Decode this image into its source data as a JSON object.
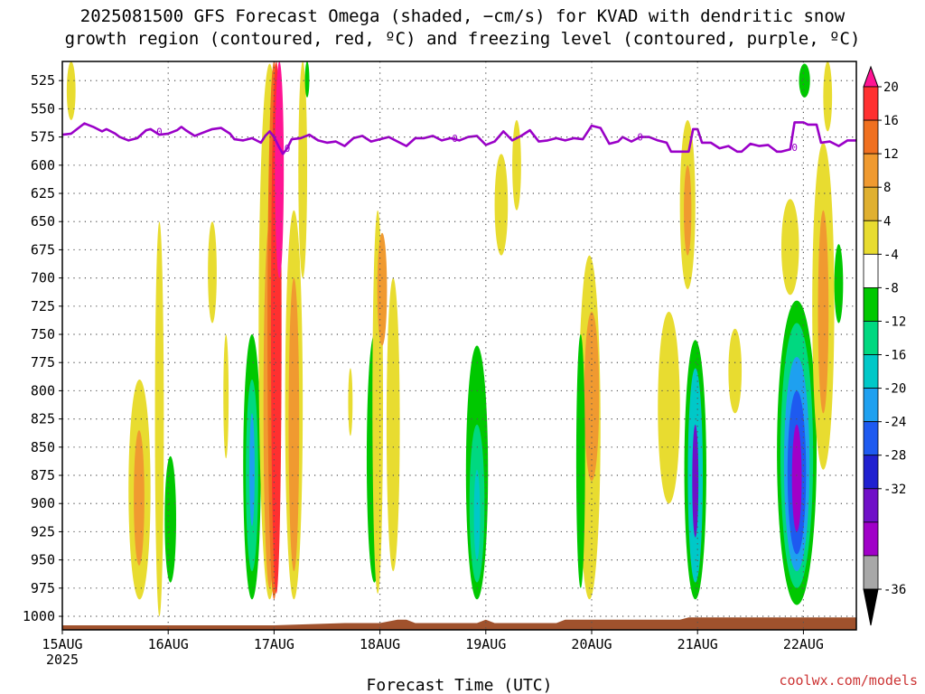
{
  "title": {
    "line1": "2025081500 GFS Forecast Omega (shaded, −cm/s) for KVAD with dendritic snow",
    "line2": "growth region (contoured, red, ºC) and freezing level (contoured, purple, ºC)"
  },
  "credit": "coolwx.com/models",
  "chart_data": {
    "type": "heatmap",
    "xlabel": "Forecast Time (UTC)",
    "xlim_hours": [
      0,
      180
    ],
    "x_ticks": [
      {
        "label": "15AUG",
        "sub": "2025",
        "hour": 0
      },
      {
        "label": "16AUG",
        "hour": 24
      },
      {
        "label": "17AUG",
        "hour": 48
      },
      {
        "label": "18AUG",
        "hour": 72
      },
      {
        "label": "19AUG",
        "hour": 96
      },
      {
        "label": "20AUG",
        "hour": 120
      },
      {
        "label": "21AUG",
        "hour": 144
      },
      {
        "label": "22AUG",
        "hour": 168
      }
    ],
    "y_unit": "hPa",
    "ylim": [
      1012,
      508
    ],
    "y_ticks": [
      525,
      550,
      575,
      600,
      625,
      650,
      675,
      700,
      725,
      750,
      775,
      800,
      825,
      850,
      875,
      900,
      925,
      950,
      975,
      1000
    ],
    "grid": true,
    "colorbar": {
      "labels": [
        20,
        16,
        12,
        8,
        4,
        -4,
        -8,
        -12,
        -16,
        -20,
        -24,
        -28,
        -32,
        -36
      ],
      "colors": [
        "#ff1493",
        "#ff3030",
        "#f07020",
        "#f09a30",
        "#e0b030",
        "#e8dc30",
        "#ffffff",
        "#00c800",
        "#00d880",
        "#00c8c8",
        "#1ea0f0",
        "#1e5af0",
        "#2020d0",
        "#7010c8",
        "#a000c8",
        "#a8a8a8",
        "#000000"
      ]
    },
    "freezing_level": {
      "color": "#9a00c8",
      "label": "0",
      "points": [
        [
          0,
          573
        ],
        [
          2,
          572
        ],
        [
          4,
          566
        ],
        [
          5,
          563
        ],
        [
          7,
          566
        ],
        [
          9,
          570
        ],
        [
          10,
          568
        ],
        [
          12,
          572
        ],
        [
          13,
          575
        ],
        [
          15,
          578
        ],
        [
          17,
          576
        ],
        [
          19,
          569
        ],
        [
          20,
          568
        ],
        [
          22,
          573
        ],
        [
          24,
          572
        ],
        [
          26,
          569
        ],
        [
          27,
          566
        ],
        [
          28,
          569
        ],
        [
          30,
          574
        ],
        [
          32,
          571
        ],
        [
          34,
          568
        ],
        [
          36,
          567
        ],
        [
          38,
          572
        ],
        [
          39,
          577
        ],
        [
          41,
          578
        ],
        [
          43,
          576
        ],
        [
          45,
          580
        ],
        [
          46,
          574
        ],
        [
          47,
          570
        ],
        [
          48,
          575
        ],
        [
          49,
          583
        ],
        [
          50,
          590
        ],
        [
          51,
          585
        ],
        [
          52,
          577
        ],
        [
          54,
          576
        ],
        [
          56,
          573
        ],
        [
          58,
          578
        ],
        [
          60,
          580
        ],
        [
          62,
          579
        ],
        [
          64,
          583
        ],
        [
          66,
          576
        ],
        [
          68,
          574
        ],
        [
          70,
          579
        ],
        [
          72,
          577
        ],
        [
          74,
          575
        ],
        [
          76,
          579
        ],
        [
          78,
          583
        ],
        [
          80,
          576
        ],
        [
          82,
          576
        ],
        [
          84,
          574
        ],
        [
          86,
          578
        ],
        [
          88,
          576
        ],
        [
          90,
          578
        ],
        [
          92,
          575
        ],
        [
          94,
          574
        ],
        [
          96,
          582
        ],
        [
          98,
          579
        ],
        [
          100,
          570
        ],
        [
          102,
          578
        ],
        [
          104,
          574
        ],
        [
          106,
          569
        ],
        [
          108,
          579
        ],
        [
          110,
          578
        ],
        [
          112,
          576
        ],
        [
          114,
          578
        ],
        [
          116,
          576
        ],
        [
          118,
          577
        ],
        [
          120,
          565
        ],
        [
          122,
          567
        ],
        [
          124,
          581
        ],
        [
          126,
          579
        ],
        [
          127,
          575
        ],
        [
          129,
          579
        ],
        [
          131,
          575
        ],
        [
          133,
          575
        ],
        [
          135,
          578
        ],
        [
          137,
          580
        ],
        [
          138,
          588
        ],
        [
          141,
          588
        ],
        [
          142,
          588
        ],
        [
          143,
          568
        ],
        [
          144,
          568
        ],
        [
          145,
          580
        ],
        [
          147,
          580
        ],
        [
          149,
          585
        ],
        [
          151,
          583
        ],
        [
          153,
          588
        ],
        [
          154,
          588
        ],
        [
          156,
          581
        ],
        [
          158,
          583
        ],
        [
          160,
          582
        ],
        [
          162,
          588
        ],
        [
          163,
          588
        ],
        [
          165,
          586
        ],
        [
          166,
          562
        ],
        [
          168,
          562
        ],
        [
          169,
          564
        ],
        [
          171,
          564
        ],
        [
          172,
          580
        ],
        [
          174,
          579
        ],
        [
          176,
          583
        ],
        [
          178,
          578
        ],
        [
          180,
          578
        ]
      ],
      "contour_labels": [
        [
          22,
          570
        ],
        [
          51,
          585
        ],
        [
          89,
          576
        ],
        [
          131,
          575
        ],
        [
          166,
          584
        ]
      ]
    },
    "shaded_regions": [
      {
        "x": [
          1.0,
          3.0
        ],
        "y": [
          508,
          560
        ],
        "value": 5,
        "color": "#e8dc30"
      },
      {
        "x": [
          15.0,
          20.0
        ],
        "y": [
          790,
          985
        ],
        "value": 6,
        "color": "#e8dc30"
      },
      {
        "x": [
          16.2,
          18.6
        ],
        "y": [
          835,
          955
        ],
        "value": 10,
        "color": "#f09a30"
      },
      {
        "x": [
          23.2,
          25.8
        ],
        "y": [
          858,
          970
        ],
        "value": -6,
        "color": "#00c800"
      },
      {
        "x": [
          21.0,
          23.0
        ],
        "y": [
          650,
          1000
        ],
        "value": 5,
        "color": "#e8dc30"
      },
      {
        "x": [
          33.0,
          35.0
        ],
        "y": [
          650,
          740
        ],
        "value": 5,
        "color": "#e8dc30"
      },
      {
        "x": [
          36.5,
          37.7
        ],
        "y": [
          750,
          860
        ],
        "value": 5,
        "color": "#e8dc30"
      },
      {
        "x": [
          41.0,
          45.0
        ],
        "y": [
          750,
          985
        ],
        "value": -7,
        "color": "#00c800"
      },
      {
        "x": [
          41.6,
          44.4
        ],
        "y": [
          790,
          960
        ],
        "value": -10,
        "color": "#00d880"
      },
      {
        "x": [
          42.4,
          43.6
        ],
        "y": [
          820,
          920
        ],
        "value": -14,
        "color": "#1ea0f0"
      },
      {
        "x": [
          44.5,
          49.5
        ],
        "y": [
          510,
          985
        ],
        "value": 6,
        "color": "#e8dc30"
      },
      {
        "x": [
          45.6,
          48.4
        ],
        "y": [
          650,
          975
        ],
        "value": 10,
        "color": "#f09a30"
      },
      {
        "x": [
          46.5,
          49.5
        ],
        "y": [
          508,
          985
        ],
        "value": 14,
        "color": "#f07020"
      },
      {
        "x": [
          47.3,
          49.7
        ],
        "y": [
          508,
          980
        ],
        "value": 18,
        "color": "#ff3030"
      },
      {
        "x": [
          48.2,
          50.2
        ],
        "y": [
          508,
          700
        ],
        "value": 22,
        "color": "#ff1493"
      },
      {
        "x": [
          50.5,
          54.5
        ],
        "y": [
          640,
          985
        ],
        "value": 6,
        "color": "#e8dc30"
      },
      {
        "x": [
          51.3,
          53.7
        ],
        "y": [
          700,
          960
        ],
        "value": 10,
        "color": "#f09a30"
      },
      {
        "x": [
          53.5,
          55.5
        ],
        "y": [
          508,
          700
        ],
        "value": 5,
        "color": "#e8dc30"
      },
      {
        "x": [
          55.0,
          56.0
        ],
        "y": [
          508,
          540
        ],
        "value": -6,
        "color": "#00c800"
      },
      {
        "x": [
          64.8,
          65.8
        ],
        "y": [
          780,
          840
        ],
        "value": 5,
        "color": "#e8dc30"
      },
      {
        "x": [
          69.0,
          72.5
        ],
        "y": [
          750,
          970
        ],
        "value": -6,
        "color": "#00c800"
      },
      {
        "x": [
          70.3,
          72.7
        ],
        "y": [
          640,
          980
        ],
        "value": 5,
        "color": "#e8dc30"
      },
      {
        "x": [
          71.4,
          73.6
        ],
        "y": [
          660,
          760
        ],
        "value": 9,
        "color": "#f09a30"
      },
      {
        "x": [
          73.5,
          76.5
        ],
        "y": [
          700,
          960
        ],
        "value": 5,
        "color": "#e8dc30"
      },
      {
        "x": [
          91.5,
          96.5
        ],
        "y": [
          760,
          985
        ],
        "value": -6,
        "color": "#00c800"
      },
      {
        "x": [
          92.3,
          95.7
        ],
        "y": [
          830,
          970
        ],
        "value": -10,
        "color": "#00d880"
      },
      {
        "x": [
          93.3,
          94.7
        ],
        "y": [
          870,
          950
        ],
        "value": -13,
        "color": "#00c8c8"
      },
      {
        "x": [
          98.0,
          101.0
        ],
        "y": [
          590,
          680
        ],
        "value": 5,
        "color": "#e8dc30"
      },
      {
        "x": [
          102.0,
          104.0
        ],
        "y": [
          560,
          640
        ],
        "value": 5,
        "color": "#e8dc30"
      },
      {
        "x": [
          117.0,
          122.0
        ],
        "y": [
          680,
          985
        ],
        "value": 5,
        "color": "#e8dc30"
      },
      {
        "x": [
          118.3,
          121.7
        ],
        "y": [
          730,
          880
        ],
        "value": 9,
        "color": "#f09a30"
      },
      {
        "x": [
          116.5,
          118.5
        ],
        "y": [
          750,
          975
        ],
        "value": -6,
        "color": "#00c800"
      },
      {
        "x": [
          135.0,
          140.0
        ],
        "y": [
          730,
          900
        ],
        "value": 5,
        "color": "#e8dc30"
      },
      {
        "x": [
          140.0,
          143.5
        ],
        "y": [
          560,
          710
        ],
        "value": 5,
        "color": "#e8dc30"
      },
      {
        "x": [
          140.9,
          142.6
        ],
        "y": [
          600,
          680
        ],
        "value": 10,
        "color": "#f09a30"
      },
      {
        "x": [
          141.0,
          146.0
        ],
        "y": [
          755,
          985
        ],
        "value": -7,
        "color": "#00c800"
      },
      {
        "x": [
          141.8,
          145.2
        ],
        "y": [
          780,
          970
        ],
        "value": -12,
        "color": "#00c8c8"
      },
      {
        "x": [
          142.8,
          144.2
        ],
        "y": [
          830,
          930
        ],
        "value": -27,
        "color": "#7010c8"
      },
      {
        "x": [
          151.0,
          154.0
        ],
        "y": [
          745,
          820
        ],
        "value": 5,
        "color": "#e8dc30"
      },
      {
        "x": [
          162.0,
          171.0
        ],
        "y": [
          720,
          990
        ],
        "value": -7,
        "color": "#00c800"
      },
      {
        "x": [
          162.8,
          170.2
        ],
        "y": [
          740,
          975
        ],
        "value": -11,
        "color": "#00d880"
      },
      {
        "x": [
          163.6,
          169.4
        ],
        "y": [
          770,
          960
        ],
        "value": -16,
        "color": "#1ea0f0"
      },
      {
        "x": [
          164.4,
          168.6
        ],
        "y": [
          800,
          945
        ],
        "value": -22,
        "color": "#1e5af0"
      },
      {
        "x": [
          165.4,
          167.6
        ],
        "y": [
          830,
          925
        ],
        "value": -30,
        "color": "#a000c8"
      },
      {
        "x": [
          163.0,
          167.0
        ],
        "y": [
          630,
          715
        ],
        "value": 5,
        "color": "#e8dc30"
      },
      {
        "x": [
          170.0,
          175.0
        ],
        "y": [
          580,
          870
        ],
        "value": 5,
        "color": "#e8dc30"
      },
      {
        "x": [
          171.3,
          173.7
        ],
        "y": [
          640,
          820
        ],
        "value": 10,
        "color": "#f09a30"
      },
      {
        "x": [
          172.5,
          174.5
        ],
        "y": [
          508,
          570
        ],
        "value": 5,
        "color": "#e8dc30"
      },
      {
        "x": [
          167.0,
          169.5
        ],
        "y": [
          510,
          540
        ],
        "value": -6,
        "color": "#00c800"
      },
      {
        "x": [
          175.0,
          177.0
        ],
        "y": [
          670,
          740
        ],
        "value": -6,
        "color": "#00c800"
      }
    ],
    "terrain": {
      "color": "#a0522d",
      "points": [
        [
          0,
          1008
        ],
        [
          48,
          1008
        ],
        [
          64,
          1006
        ],
        [
          72,
          1006
        ],
        [
          76,
          1003
        ],
        [
          78,
          1003
        ],
        [
          80,
          1006
        ],
        [
          94,
          1006
        ],
        [
          96,
          1003
        ],
        [
          98,
          1006
        ],
        [
          112,
          1006
        ],
        [
          114,
          1003
        ],
        [
          140,
          1003
        ],
        [
          142,
          1001
        ],
        [
          180,
          1001
        ]
      ]
    }
  }
}
